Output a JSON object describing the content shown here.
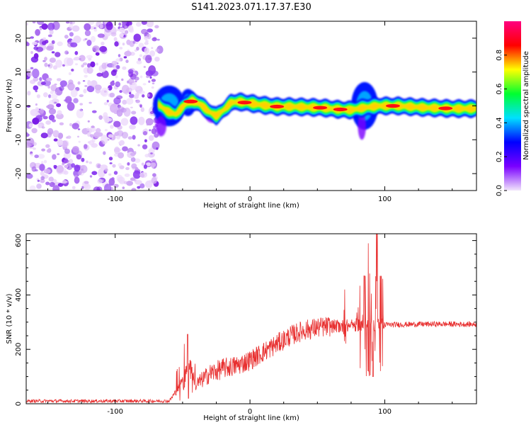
{
  "title": "S141.2023.071.17.37.E30",
  "chart_data": [
    {
      "type": "heatmap",
      "xlabel": "Height of straight line (km)",
      "ylabel": "Frequency (Hz)",
      "xlim": [
        -166,
        168
      ],
      "ylim": [
        -25,
        25
      ],
      "x_ticks": [
        -100,
        0,
        100
      ],
      "y_ticks": [
        -20,
        -10,
        0,
        10,
        20
      ],
      "noise_region_end_x": -72,
      "ridge": [
        {
          "x": -68,
          "y": 0.5
        },
        {
          "x": -62,
          "y": -1.5
        },
        {
          "x": -55,
          "y": -2.5
        },
        {
          "x": -48,
          "y": 0.5
        },
        {
          "x": -43,
          "y": 1.5
        },
        {
          "x": -37,
          "y": 0.5
        },
        {
          "x": -31,
          "y": -1.5
        },
        {
          "x": -25,
          "y": -3
        },
        {
          "x": -19,
          "y": -1
        },
        {
          "x": -14,
          "y": 1
        },
        {
          "x": -8,
          "y": 1.2
        },
        {
          "x": 0,
          "y": 0.8
        },
        {
          "x": 10,
          "y": 0.2
        },
        {
          "x": 20,
          "y": -0.2
        },
        {
          "x": 30,
          "y": -0.2
        },
        {
          "x": 45,
          "y": -0.4
        },
        {
          "x": 55,
          "y": -0.6
        },
        {
          "x": 65,
          "y": -1
        },
        {
          "x": 75,
          "y": -1.2
        },
        {
          "x": 85,
          "y": -0.5
        },
        {
          "x": 95,
          "y": 0
        },
        {
          "x": 110,
          "y": 0
        },
        {
          "x": 130,
          "y": -0.5
        },
        {
          "x": 150,
          "y": -0.8
        },
        {
          "x": 168,
          "y": -0.8
        }
      ],
      "colorbar": {
        "label": "Normalized spectral amplitude",
        "range": [
          0,
          1
        ],
        "ticks": [
          "0.0",
          "0.2",
          "0.4",
          "0.6",
          "0.8"
        ],
        "colors": [
          "#f2e6fb",
          "#7a00ff",
          "#0000ff",
          "#00e0ff",
          "#00ff30",
          "#ffff00",
          "#ff0000",
          "#ff0080"
        ]
      }
    },
    {
      "type": "line",
      "xlabel": "Height of straight line (km)",
      "ylabel": "SNR (10 * v/v)",
      "xlim": [
        -166,
        168
      ],
      "ylim": [
        0,
        625
      ],
      "x_ticks": [
        -100,
        0,
        100
      ],
      "y_ticks": [
        0,
        200,
        400,
        600
      ],
      "color": "#e83030",
      "envelope": [
        {
          "x": -166,
          "y": 10
        },
        {
          "x": -60,
          "y": 10
        },
        {
          "x": -54,
          "y": 50
        },
        {
          "x": -50,
          "y": 100
        },
        {
          "x": -45,
          "y": 150
        },
        {
          "x": -40,
          "y": 70
        },
        {
          "x": -35,
          "y": 90
        },
        {
          "x": -30,
          "y": 110
        },
        {
          "x": -20,
          "y": 130
        },
        {
          "x": -10,
          "y": 140
        },
        {
          "x": 0,
          "y": 160
        },
        {
          "x": 10,
          "y": 190
        },
        {
          "x": 20,
          "y": 220
        },
        {
          "x": 30,
          "y": 250
        },
        {
          "x": 40,
          "y": 270
        },
        {
          "x": 50,
          "y": 280
        },
        {
          "x": 60,
          "y": 285
        },
        {
          "x": 70,
          "y": 285
        },
        {
          "x": 80,
          "y": 290
        },
        {
          "x": 90,
          "y": 290
        },
        {
          "x": 100,
          "y": 290
        },
        {
          "x": 120,
          "y": 292
        },
        {
          "x": 140,
          "y": 293
        },
        {
          "x": 168,
          "y": 292
        }
      ],
      "spikes": [
        {
          "x": -46,
          "lo": 20,
          "hi": 255
        },
        {
          "x": -49,
          "lo": 60,
          "hi": 220
        },
        {
          "x": 70,
          "lo": 230,
          "hi": 420
        },
        {
          "x": 85,
          "lo": 150,
          "hi": 470
        },
        {
          "x": 88,
          "lo": 120,
          "hi": 590
        },
        {
          "x": 91,
          "lo": 100,
          "hi": 520
        },
        {
          "x": 94,
          "lo": 40,
          "hi": 625
        },
        {
          "x": 97,
          "lo": 120,
          "hi": 470
        }
      ]
    }
  ]
}
